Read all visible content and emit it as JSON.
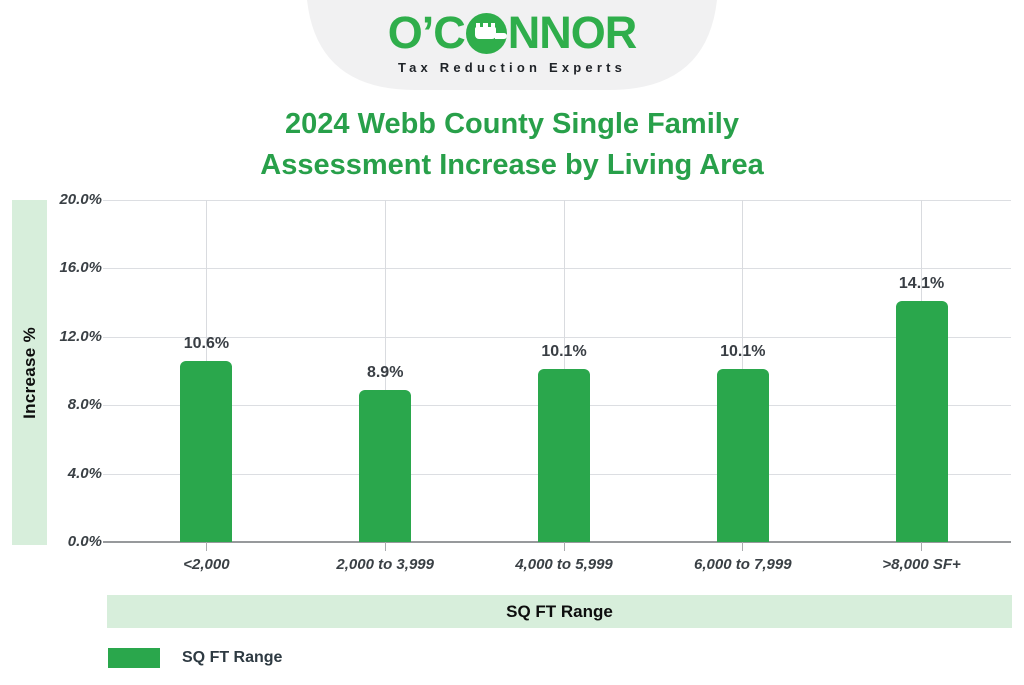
{
  "logo": {
    "text_left": "O’C",
    "text_right": "NNOR",
    "tagline": "Tax Reduction Experts",
    "brand_green": "#2fae4b",
    "badge_gray": "#f1f1f2"
  },
  "title": {
    "line1": "2024 Webb County Single Family",
    "line2": "Assessment Increase by Living Area"
  },
  "chart_data": {
    "type": "bar",
    "title": "2024 Webb County Single Family Assessment Increase by Living Area",
    "categories": [
      "<2,000",
      "2,000 to 3,999",
      "4,000 to 5,999",
      "6,000 to 7,999",
      ">8,000 SF+"
    ],
    "values": [
      10.6,
      8.9,
      10.1,
      10.1,
      14.1
    ],
    "value_labels": [
      "10.6%",
      "8.9%",
      "10.1%",
      "10.1%",
      "14.1%"
    ],
    "xlabel": "SQ FT Range",
    "ylabel": "Increase %",
    "ylim": [
      0,
      20
    ],
    "ytick_labels": [
      "20.0%",
      "16.0%",
      "12.0%",
      "8.0%",
      "4.0%",
      "0.0%"
    ],
    "grid": true,
    "bar_color": "#2aa74c",
    "band_color": "#d7eedb",
    "title_color": "#28a04a",
    "legend": {
      "label": "SQ FT Range",
      "position": "bottom-left"
    }
  }
}
